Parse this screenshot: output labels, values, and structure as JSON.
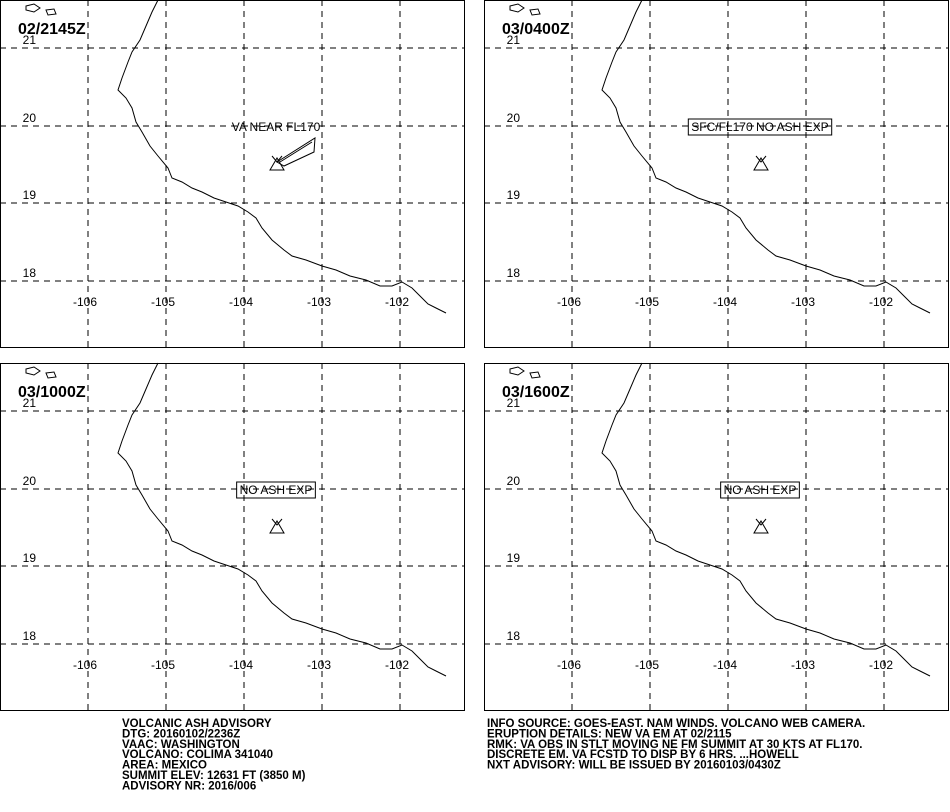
{
  "panels": [
    {
      "time": "02/2145Z",
      "label": "VA NEAR FL170"
    },
    {
      "time": "03/0400Z",
      "label": "SFC/FL170 NO ASH EXP"
    },
    {
      "time": "03/1000Z",
      "label": "NO ASH EXP"
    },
    {
      "time": "03/1600Z",
      "label": "NO ASH EXP"
    }
  ],
  "map": {
    "lat_labels": [
      "21",
      "20",
      "19",
      "18"
    ],
    "lon_labels": [
      "-106",
      "-105",
      "-104",
      "-103",
      "-102"
    ]
  },
  "advisory": {
    "left": [
      "VOLCANIC ASH ADVISORY",
      "DTG: 20160102/2236Z",
      "VAAC: WASHINGTON",
      "VOLCANO: COLIMA 341040",
      "AREA: MEXICO",
      "SUMMIT ELEV: 12631 FT (3850 M)",
      "ADVISORY NR: 2016/006"
    ],
    "right": [
      "INFO SOURCE: GOES-EAST. NAM WINDS. VOLCANO WEB CAMERA.",
      "ERUPTION DETAILS: NEW VA EM AT 02/2115",
      "RMK: VA OBS IN STLT MOVING NE FM SUMMIT AT 30 KTS AT FL170.",
      "DISCRETE EM. VA FCSTD TO DISP BY 6 HRS. ...HOWELL",
      "NXT ADVISORY: WILL BE ISSUED BY 20160103/0430Z"
    ]
  }
}
